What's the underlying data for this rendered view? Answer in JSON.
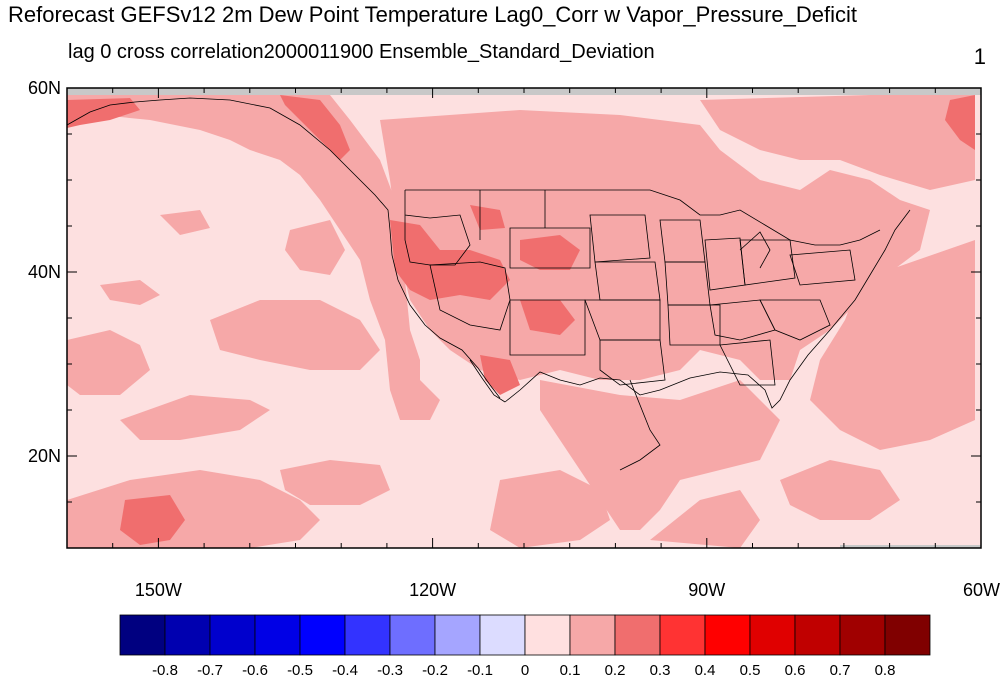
{
  "title": "Reforecast GEFSv12 2m Dew Point Temperature Lag0_Corr w Vapor_Pressure_Deficit",
  "subtitle_left": "lag 0 cross correlation2000011900 Ensemble_Standard_Deviation",
  "subtitle_right": "1",
  "map": {
    "lon_range": [
      -160,
      -60
    ],
    "lat_range": [
      10,
      60
    ],
    "lat_ticks": [
      {
        "value": 60,
        "label": "60N"
      },
      {
        "value": 40,
        "label": "40N"
      },
      {
        "value": 20,
        "label": "20N"
      }
    ],
    "lon_ticks": [
      {
        "value": -150,
        "label": "150W"
      },
      {
        "value": -120,
        "label": "120W"
      },
      {
        "value": -90,
        "label": "90W"
      },
      {
        "value": -60,
        "label": "60W"
      }
    ],
    "field_colors": {
      "background": "#fde0e0",
      "level_0_1": "#f6a8a8",
      "level_0_2": "#f06e6e",
      "missing": "#c8c8c8"
    }
  },
  "colorbar": {
    "colors": [
      "#000080",
      "#0000b0",
      "#0000cd",
      "#0000e6",
      "#0000ff",
      "#3333ff",
      "#6e6eff",
      "#a5a5ff",
      "#dcdcff",
      "#ffe0e0",
      "#f6a8a8",
      "#f06e6e",
      "#ff3333",
      "#ff0000",
      "#e00000",
      "#c00000",
      "#a00000",
      "#800000"
    ],
    "labels": [
      "-0.8",
      "-0.7",
      "-0.6",
      "-0.5",
      "-0.4",
      "-0.3",
      "-0.2",
      "-0.1",
      "0",
      "0.1",
      "0.2",
      "0.3",
      "0.4",
      "0.5",
      "0.6",
      "0.7",
      "0.8"
    ]
  }
}
